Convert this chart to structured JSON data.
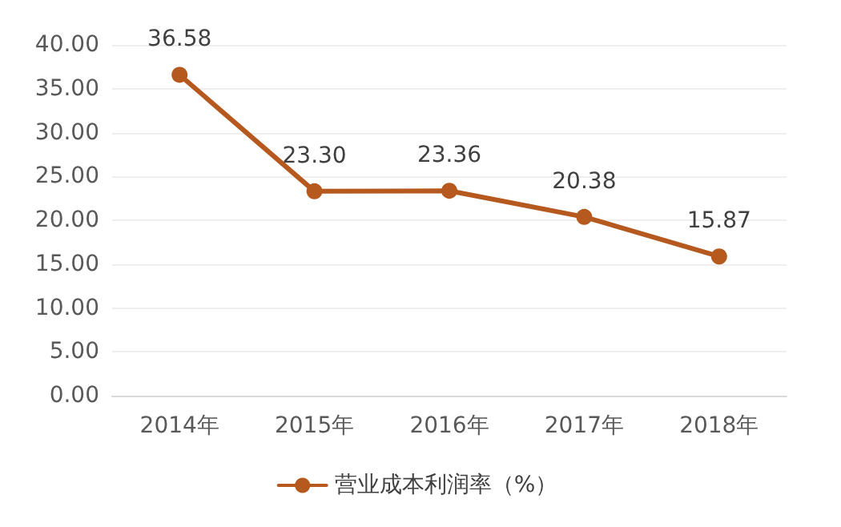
{
  "chart_data": {
    "type": "line",
    "categories": [
      "2014年",
      "2015年",
      "2016年",
      "2017年",
      "2018年"
    ],
    "series": [
      {
        "name": "营业成本利润率（%）",
        "color": "#b5591f",
        "values": [
          36.58,
          23.3,
          23.36,
          20.38,
          15.87
        ]
      }
    ],
    "ylim": [
      0,
      40
    ],
    "yticks": [
      {
        "value": 0,
        "label": "0.00"
      },
      {
        "value": 5,
        "label": "5.00"
      },
      {
        "value": 10,
        "label": "10.00"
      },
      {
        "value": 15,
        "label": "15.00"
      },
      {
        "value": 20,
        "label": "20.00"
      },
      {
        "value": 25,
        "label": "25.00"
      },
      {
        "value": 30,
        "label": "30.00"
      },
      {
        "value": 35,
        "label": "35.00"
      },
      {
        "value": 40,
        "label": "40.00"
      }
    ],
    "value_labels": [
      "36.58",
      "23.30",
      "23.36",
      "20.38",
      "15.87"
    ],
    "grid": "y",
    "legend": "bottom",
    "marker": "circle",
    "line_style": "solid"
  }
}
